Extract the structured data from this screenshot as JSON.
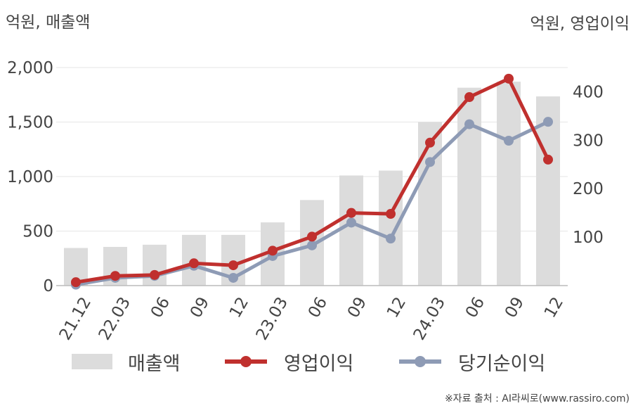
{
  "units": {
    "left": "억원, 매출액",
    "right": "억원, 영업이익"
  },
  "legend": {
    "revenue": "매출액",
    "operating_profit": "영업이익",
    "net_income": "당기순이익"
  },
  "source": "※자료 출처 : AI라씨로(www.rassiro.com)",
  "colors": {
    "bar": "#dcdcdc",
    "operating_profit": "#c0302e",
    "net_income": "#8e9bb5",
    "axis": "#bbbbbb",
    "grid": "#e6e6e6"
  },
  "chart_data": {
    "type": "bar",
    "categories": [
      "21.12",
      "22.03",
      "06",
      "09",
      "12",
      "23.03",
      "06",
      "09",
      "12",
      "24.03",
      "06",
      "09",
      "12"
    ],
    "series": [
      {
        "name": "매출액",
        "type": "bar",
        "axis": "left",
        "values": [
          345,
          355,
          375,
          465,
          465,
          580,
          785,
          1010,
          1055,
          1500,
          1815,
          1870,
          1735
        ]
      },
      {
        "name": "영업이익",
        "type": "line",
        "axis": "right",
        "values": [
          7,
          20,
          22,
          46,
          42,
          72,
          101,
          150,
          148,
          295,
          389,
          427,
          260
        ]
      },
      {
        "name": "당기순이익",
        "type": "line",
        "axis": "right",
        "values": [
          2,
          16,
          20,
          41,
          16,
          61,
          83,
          130,
          97,
          255,
          333,
          299,
          338
        ]
      }
    ],
    "y_left": {
      "ylim": [
        0,
        2000
      ],
      "ticks": [
        "0",
        "500",
        "1,000",
        "1,500",
        "2,000"
      ]
    },
    "y_right": {
      "ylim": [
        0,
        450
      ],
      "ticks": [
        "100",
        "200",
        "300",
        "400"
      ]
    },
    "grid": true,
    "legend_position": "bottom"
  }
}
